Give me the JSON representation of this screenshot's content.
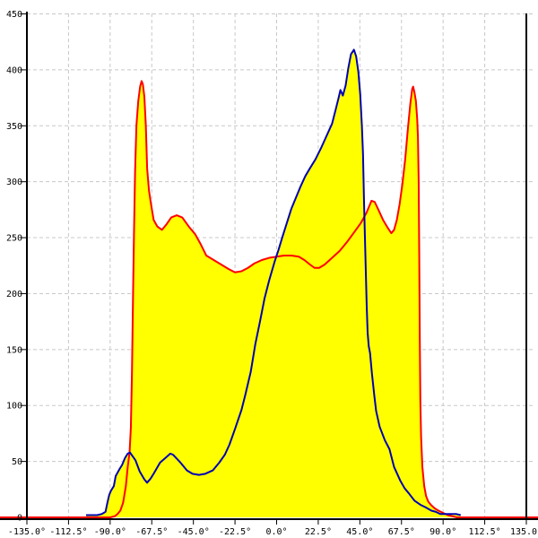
{
  "chart_data": {
    "type": "area",
    "title": "",
    "xlabel": "angle (degrees)",
    "ylabel": "",
    "xlim": [
      -135,
      135
    ],
    "ylim": [
      0,
      450
    ],
    "grid": "dashed light-gray, vertical every 22.5 deg, horizontal every 50 units",
    "legend_position": "none",
    "x_axis": {
      "tick_values": [
        -135,
        -112.5,
        -90,
        -67.5,
        -45,
        -22.5,
        0,
        22.5,
        45,
        67.5,
        90,
        112.5,
        135
      ],
      "tick_labels": [
        "-135.0°",
        "-112.5°",
        "-90.0°",
        "-67.5°",
        "-45.0°",
        "-22.5°",
        "0.0°",
        "22.5°",
        "45.0°",
        "67.5°",
        "90.0°",
        "112.5°",
        "135.0°"
      ]
    },
    "y_axis": {
      "tick_values": [
        0,
        50,
        100,
        150,
        200,
        250,
        300,
        350,
        400,
        450
      ],
      "tick_labels": [
        "0",
        "50",
        "100",
        "150",
        "200",
        "250",
        "300",
        "350",
        "400",
        "450"
      ]
    },
    "fill_rule": "area under upper envelope of the two curves is filled yellow; red baseline runs full plot width at value 0",
    "series": [
      {
        "name": "red-lobe-curve",
        "color": "#ff0000",
        "peaks": [
          {
            "x": -73,
            "y": 390
          },
          {
            "x": 51.3,
            "y": 283
          },
          {
            "x": 73.8,
            "y": 385
          }
        ],
        "points": [
          [
            -135,
            0
          ],
          [
            -110,
            0
          ],
          [
            -95,
            0
          ],
          [
            -90,
            0
          ],
          [
            -87.5,
            1
          ],
          [
            -86,
            3
          ],
          [
            -84.5,
            6
          ],
          [
            -83,
            13
          ],
          [
            -81.5,
            28
          ],
          [
            -80.5,
            45
          ],
          [
            -79.5,
            58
          ],
          [
            -78.8,
            80
          ],
          [
            -78.2,
            130
          ],
          [
            -77.6,
            200
          ],
          [
            -77.1,
            255
          ],
          [
            -76.5,
            310
          ],
          [
            -75.8,
            350
          ],
          [
            -74.8,
            372
          ],
          [
            -73.8,
            385
          ],
          [
            -73,
            390
          ],
          [
            -72.3,
            387
          ],
          [
            -71.5,
            376
          ],
          [
            -70.7,
            350
          ],
          [
            -70,
            312
          ],
          [
            -69,
            292
          ],
          [
            -68,
            281
          ],
          [
            -66.5,
            266
          ],
          [
            -64.5,
            260
          ],
          [
            -62,
            257
          ],
          [
            -59.5,
            262
          ],
          [
            -57,
            268
          ],
          [
            -54,
            270
          ],
          [
            -51,
            268
          ],
          [
            -47.5,
            260
          ],
          [
            -44,
            253
          ],
          [
            -41,
            244
          ],
          [
            -38,
            234
          ],
          [
            -34,
            230
          ],
          [
            -30,
            226
          ],
          [
            -26,
            222
          ],
          [
            -22.5,
            219
          ],
          [
            -19,
            220
          ],
          [
            -15.5,
            223
          ],
          [
            -12,
            227
          ],
          [
            -8,
            230
          ],
          [
            -4,
            232
          ],
          [
            0,
            233
          ],
          [
            4,
            234
          ],
          [
            8,
            234
          ],
          [
            12,
            233
          ],
          [
            15,
            230
          ],
          [
            18,
            226
          ],
          [
            20.5,
            223
          ],
          [
            23,
            223
          ],
          [
            26,
            226
          ],
          [
            30,
            232
          ],
          [
            34,
            238
          ],
          [
            38,
            246
          ],
          [
            42,
            255
          ],
          [
            45.5,
            263
          ],
          [
            48.5,
            272
          ],
          [
            51.3,
            283
          ],
          [
            53,
            282
          ],
          [
            55,
            275
          ],
          [
            57.5,
            266
          ],
          [
            60,
            259
          ],
          [
            62,
            254
          ],
          [
            63.5,
            257
          ],
          [
            65,
            266
          ],
          [
            66.5,
            280
          ],
          [
            68,
            298
          ],
          [
            69.5,
            320
          ],
          [
            71,
            348
          ],
          [
            72.3,
            370
          ],
          [
            73.3,
            383
          ],
          [
            73.8,
            385
          ],
          [
            74.5,
            380
          ],
          [
            75.3,
            372
          ],
          [
            76,
            356
          ],
          [
            76.4,
            340
          ],
          [
            76.8,
            300
          ],
          [
            77.1,
            235
          ],
          [
            77.4,
            160
          ],
          [
            77.7,
            105
          ],
          [
            78.1,
            72
          ],
          [
            78.8,
            45
          ],
          [
            79.8,
            28
          ],
          [
            80.8,
            19
          ],
          [
            82,
            14
          ],
          [
            83.5,
            11
          ],
          [
            85.5,
            8
          ],
          [
            87.5,
            6
          ],
          [
            90,
            4
          ],
          [
            92.5,
            2
          ],
          [
            95,
            1
          ],
          [
            97.5,
            0
          ],
          [
            110,
            0
          ],
          [
            120,
            0
          ],
          [
            135,
            0
          ]
        ]
      },
      {
        "name": "blue-curve",
        "color": "#0000b4",
        "peaks": [
          {
            "x": -80,
            "y": 58
          },
          {
            "x": -57.5,
            "y": 57
          },
          {
            "x": 41.8,
            "y": 418
          }
        ],
        "points": [
          [
            -103,
            2
          ],
          [
            -100,
            2
          ],
          [
            -97,
            2
          ],
          [
            -94.5,
            3
          ],
          [
            -92.5,
            5
          ],
          [
            -91.5,
            13
          ],
          [
            -90.5,
            20
          ],
          [
            -89.5,
            24
          ],
          [
            -88,
            28
          ],
          [
            -87,
            37
          ],
          [
            -85,
            43
          ],
          [
            -83.5,
            47
          ],
          [
            -82,
            53
          ],
          [
            -80.5,
            57
          ],
          [
            -79.3,
            58
          ],
          [
            -78,
            55
          ],
          [
            -76.3,
            51
          ],
          [
            -74,
            41
          ],
          [
            -71.5,
            34
          ],
          [
            -70,
            31
          ],
          [
            -68,
            35
          ],
          [
            -66.5,
            39
          ],
          [
            -63,
            49
          ],
          [
            -59.5,
            54
          ],
          [
            -57.5,
            57
          ],
          [
            -56,
            56
          ],
          [
            -52,
            49
          ],
          [
            -48.5,
            42
          ],
          [
            -45.5,
            39
          ],
          [
            -42,
            38
          ],
          [
            -38.5,
            39
          ],
          [
            -34.5,
            42
          ],
          [
            -31,
            49
          ],
          [
            -28,
            56
          ],
          [
            -25.5,
            65
          ],
          [
            -22.5,
            79
          ],
          [
            -19,
            96
          ],
          [
            -17,
            109
          ],
          [
            -14,
            130
          ],
          [
            -11.5,
            155
          ],
          [
            -9,
            175
          ],
          [
            -6.5,
            196
          ],
          [
            -4,
            212
          ],
          [
            -1,
            229
          ],
          [
            1,
            239
          ],
          [
            3,
            250
          ],
          [
            5.5,
            263
          ],
          [
            8,
            276
          ],
          [
            10.5,
            286
          ],
          [
            13,
            296
          ],
          [
            15.5,
            305
          ],
          [
            18,
            312
          ],
          [
            21,
            320
          ],
          [
            24,
            330
          ],
          [
            27,
            341
          ],
          [
            30,
            352
          ],
          [
            32,
            365
          ],
          [
            33.5,
            375
          ],
          [
            34.5,
            382
          ],
          [
            35.8,
            377
          ],
          [
            37.3,
            386
          ],
          [
            38.8,
            402
          ],
          [
            40.2,
            414
          ],
          [
            41.8,
            418
          ],
          [
            43,
            412
          ],
          [
            44.2,
            398
          ],
          [
            45.2,
            378
          ],
          [
            46.1,
            350
          ],
          [
            46.7,
            325
          ],
          [
            47.2,
            286
          ],
          [
            47.7,
            253
          ],
          [
            48.2,
            221
          ],
          [
            48.7,
            189
          ],
          [
            49.2,
            165
          ],
          [
            49.8,
            153
          ],
          [
            50.5,
            147
          ],
          [
            51.5,
            129
          ],
          [
            52.8,
            109
          ],
          [
            53.8,
            95
          ],
          [
            55.7,
            81
          ],
          [
            58.5,
            69
          ],
          [
            61,
            61
          ],
          [
            63.5,
            45
          ],
          [
            66.8,
            33
          ],
          [
            69.2,
            26
          ],
          [
            71.7,
            21
          ],
          [
            74.5,
            15
          ],
          [
            78,
            11
          ],
          [
            80.5,
            9
          ],
          [
            83.7,
            6
          ],
          [
            86,
            5
          ],
          [
            88.5,
            3
          ],
          [
            91.5,
            3
          ],
          [
            94.5,
            3
          ],
          [
            97,
            3
          ],
          [
            99.5,
            2
          ]
        ]
      }
    ]
  },
  "colors": {
    "background": "#ffffff",
    "fill_yellow": "#ffff00",
    "red_series": "#ff0000",
    "blue_series": "#0000b4",
    "grid": "#c8c8c8",
    "axis": "#000000"
  }
}
